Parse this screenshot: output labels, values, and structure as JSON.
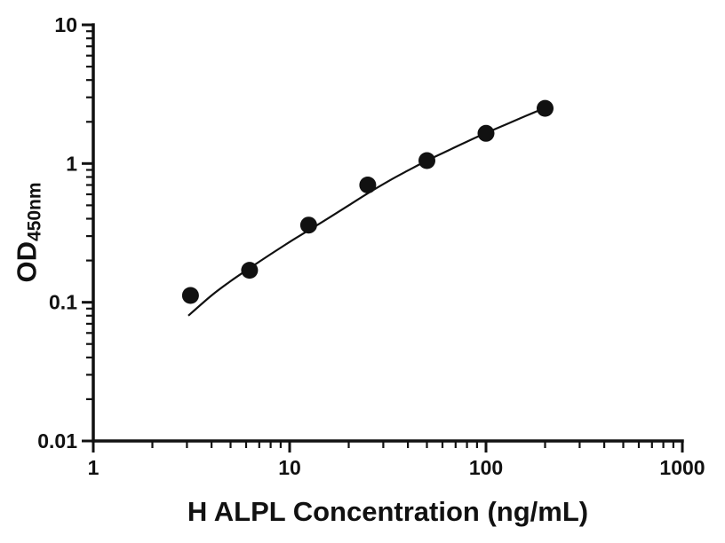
{
  "chart_data": {
    "type": "scatter",
    "title": "",
    "xlabel": "H ALPL Concentration (ng/mL)",
    "ylabel_main": "OD",
    "ylabel_sub": "450nm",
    "x_scale": "log",
    "y_scale": "log",
    "xlim": [
      1,
      1000
    ],
    "ylim": [
      0.01,
      10
    ],
    "grid": false,
    "legend_position": "none",
    "x_major_ticks": [
      1,
      10,
      100,
      1000
    ],
    "x_tick_labels": [
      "1",
      "10",
      "100",
      "1000"
    ],
    "y_major_ticks": [
      0.01,
      0.1,
      1,
      10
    ],
    "y_tick_labels": [
      "0.01",
      "0.1",
      "1",
      "10"
    ],
    "ink_color": "#111111",
    "background_color": "#ffffff",
    "series": [
      {
        "name": "standard-points",
        "type": "scatter",
        "marker": "filled-circle",
        "color": "#111111",
        "x": [
          3.125,
          6.25,
          12.5,
          25,
          50,
          100,
          200
        ],
        "y": [
          0.112,
          0.17,
          0.36,
          0.7,
          1.05,
          1.65,
          2.5
        ]
      },
      {
        "name": "fit-curve",
        "type": "line",
        "color": "#111111",
        "points": [
          [
            3.05,
            0.08
          ],
          [
            4,
            0.112
          ],
          [
            5,
            0.142
          ],
          [
            6.25,
            0.176
          ],
          [
            8,
            0.222
          ],
          [
            10,
            0.272
          ],
          [
            12.5,
            0.33
          ],
          [
            16,
            0.41
          ],
          [
            20,
            0.5
          ],
          [
            25,
            0.61
          ],
          [
            32,
            0.75
          ],
          [
            40,
            0.89
          ],
          [
            50,
            1.05
          ],
          [
            64,
            1.24
          ],
          [
            80,
            1.44
          ],
          [
            100,
            1.66
          ],
          [
            128,
            1.93
          ],
          [
            160,
            2.21
          ],
          [
            200,
            2.52
          ]
        ]
      }
    ]
  }
}
